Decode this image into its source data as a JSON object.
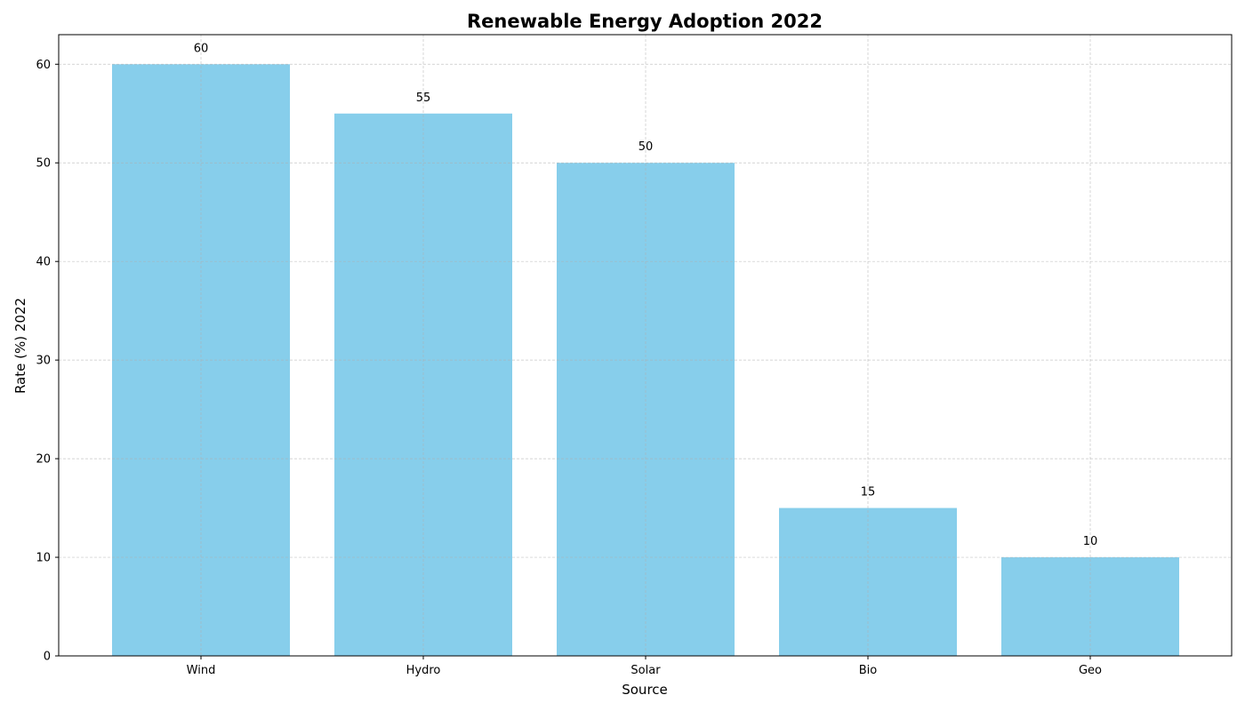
{
  "chart_data": {
    "type": "bar",
    "title": "Renewable Energy Adoption 2022",
    "xlabel": "Source",
    "ylabel": "Rate (%) 2022",
    "categories": [
      "Wind",
      "Hydro",
      "Solar",
      "Bio",
      "Geo"
    ],
    "values": [
      60,
      55,
      50,
      15,
      10
    ],
    "data_labels": [
      "60",
      "55",
      "50",
      "15",
      "10"
    ],
    "ylim": [
      0,
      63
    ],
    "yticks": [
      0,
      10,
      20,
      30,
      40,
      50,
      60
    ],
    "grid": true,
    "bar_color": "#87CEEB"
  }
}
